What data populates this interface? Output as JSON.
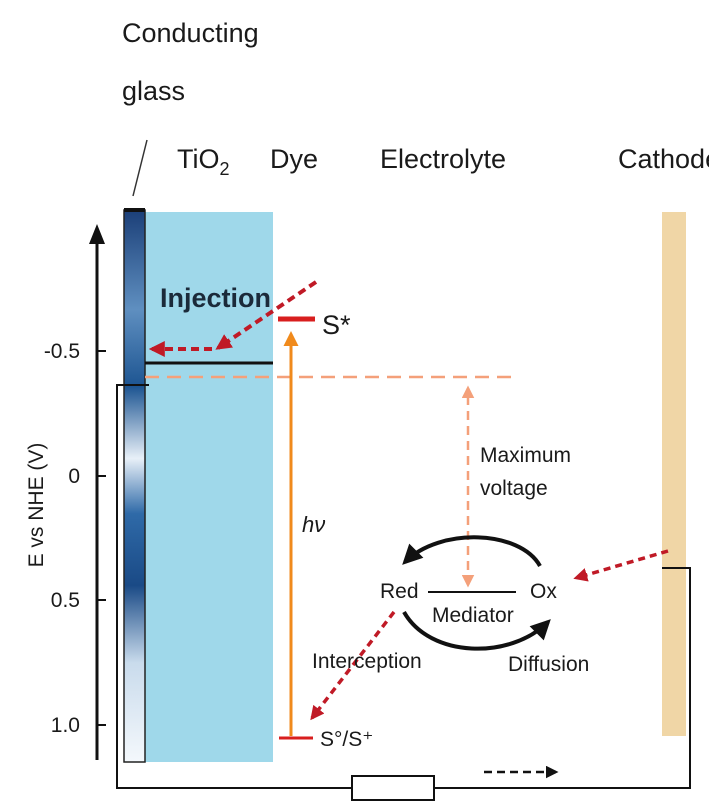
{
  "labels": {
    "conducting_glass_line1": "Conducting",
    "conducting_glass_line2": "glass",
    "tio2_base": "TiO",
    "tio2_sub": "2",
    "dye": "Dye",
    "electrolyte": "Electrolyte",
    "cathode": "Cathode",
    "injection": "Injection",
    "s_star": "S*",
    "hv": "hν",
    "max_voltage_line1": "Maximum",
    "max_voltage_line2": "voltage",
    "red": "Red",
    "ox": "Ox",
    "mediator": "Mediator",
    "interception": "Interception",
    "diffusion": "Diffusion",
    "s_ground": "S°/S⁺"
  },
  "axis": {
    "title": "E vs NHE (V)",
    "ticks": [
      "-0.5",
      "0",
      "0.5",
      "1.0"
    ]
  },
  "colors": {
    "tio2_fill": "#9fd8ea",
    "cathode_fill": "#f0d6a6",
    "dye_level": "#d81e1e",
    "excitation_arrow": "#f08a1c",
    "dashed_red": "#c01a26",
    "dashed_salmon": "#f4a07a",
    "glass_dark": "#1f5a96"
  }
}
